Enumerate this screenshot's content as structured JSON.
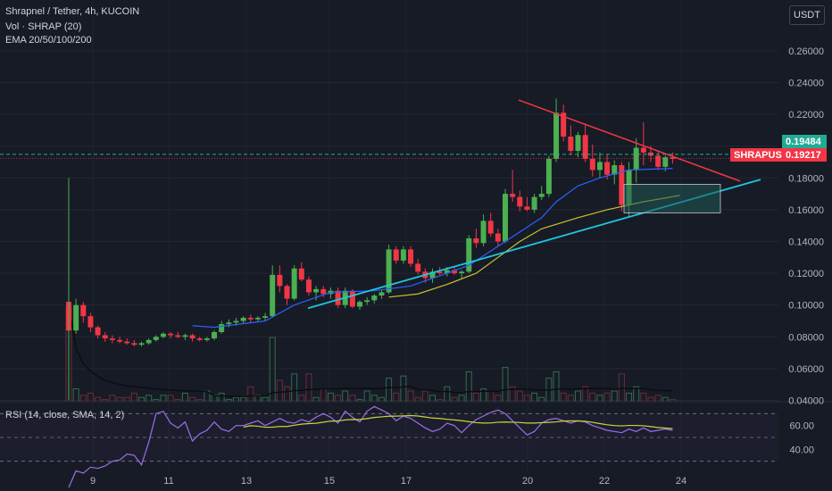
{
  "header": {
    "title": "Shrapnel / Tether, 4h, KUCOIN",
    "volume": "Vol · SHRAP (20)",
    "ema": "EMA 20/50/100/200",
    "currency": "USDT"
  },
  "colors": {
    "background": "#171b26",
    "up": "#4caf50",
    "down": "#f23645",
    "ema_fast": "#2962ff",
    "ema_slow": "#c9c12f",
    "resistance": "#f23645",
    "support": "#1ec6e0",
    "rsi_line": "#9c6ee8",
    "rsi_sma": "#c9d63a",
    "zone": "#1f5a55"
  },
  "price_axis": {
    "ticks": [
      "0.26000",
      "0.24000",
      "0.22000",
      "0.20000",
      "0.18000",
      "0.16000",
      "0.14000",
      "0.12000",
      "0.10000",
      "0.08000",
      "0.06000",
      "0.04000"
    ]
  },
  "price_labels": {
    "last_price": "0.19484",
    "symbol": "SHRAPUSDT",
    "symbol_price": "0.19217"
  },
  "time_axis": {
    "ticks": [
      "9",
      "11",
      "13",
      "15",
      "17",
      "20",
      "22",
      "24"
    ]
  },
  "rsi": {
    "label": "RSI (14, close, SMA, 14, 2)",
    "ticks": [
      "60.00",
      "40.00"
    ]
  },
  "chart_data": {
    "type": "candlestick",
    "symbol": "SHRAPUSDT",
    "exchange": "KUCOIN",
    "interval": "4h",
    "ylim": [
      0.04,
      0.27
    ],
    "candles": [
      [
        0.102,
        0.103,
        0.072,
        0.084
      ],
      [
        0.084,
        0.104,
        0.082,
        0.1
      ],
      [
        0.1,
        0.102,
        0.089,
        0.093
      ],
      [
        0.093,
        0.095,
        0.083,
        0.086
      ],
      [
        0.086,
        0.087,
        0.079,
        0.081
      ],
      [
        0.081,
        0.083,
        0.077,
        0.079
      ],
      [
        0.079,
        0.081,
        0.076,
        0.078
      ],
      [
        0.078,
        0.08,
        0.076,
        0.077
      ],
      [
        0.077,
        0.079,
        0.075,
        0.076
      ],
      [
        0.076,
        0.078,
        0.074,
        0.075
      ],
      [
        0.075,
        0.077,
        0.074,
        0.076
      ],
      [
        0.076,
        0.079,
        0.075,
        0.078
      ],
      [
        0.078,
        0.081,
        0.077,
        0.08
      ],
      [
        0.08,
        0.083,
        0.079,
        0.082
      ],
      [
        0.082,
        0.083,
        0.079,
        0.081
      ],
      [
        0.081,
        0.083,
        0.079,
        0.08
      ],
      [
        0.08,
        0.082,
        0.078,
        0.081
      ],
      [
        0.081,
        0.082,
        0.077,
        0.079
      ],
      [
        0.079,
        0.08,
        0.077,
        0.078
      ],
      [
        0.078,
        0.08,
        0.077,
        0.079
      ],
      [
        0.079,
        0.084,
        0.078,
        0.083
      ],
      [
        0.083,
        0.09,
        0.082,
        0.088
      ],
      [
        0.088,
        0.091,
        0.086,
        0.089
      ],
      [
        0.089,
        0.092,
        0.087,
        0.09
      ],
      [
        0.09,
        0.093,
        0.088,
        0.092
      ],
      [
        0.092,
        0.094,
        0.089,
        0.091
      ],
      [
        0.091,
        0.093,
        0.089,
        0.092
      ],
      [
        0.092,
        0.095,
        0.09,
        0.093
      ],
      [
        0.093,
        0.125,
        0.092,
        0.119
      ],
      [
        0.119,
        0.125,
        0.108,
        0.112
      ],
      [
        0.112,
        0.113,
        0.1,
        0.104
      ],
      [
        0.104,
        0.125,
        0.103,
        0.123
      ],
      [
        0.123,
        0.127,
        0.115,
        0.116
      ],
      [
        0.116,
        0.118,
        0.106,
        0.108
      ],
      [
        0.108,
        0.112,
        0.103,
        0.11
      ],
      [
        0.11,
        0.112,
        0.105,
        0.107
      ],
      [
        0.107,
        0.111,
        0.104,
        0.109
      ],
      [
        0.109,
        0.111,
        0.098,
        0.1
      ],
      [
        0.1,
        0.111,
        0.098,
        0.109
      ],
      [
        0.109,
        0.11,
        0.098,
        0.099
      ],
      [
        0.099,
        0.103,
        0.097,
        0.102
      ],
      [
        0.102,
        0.105,
        0.1,
        0.103
      ],
      [
        0.103,
        0.107,
        0.101,
        0.106
      ],
      [
        0.106,
        0.11,
        0.104,
        0.108
      ],
      [
        0.108,
        0.138,
        0.107,
        0.135
      ],
      [
        0.135,
        0.137,
        0.126,
        0.128
      ],
      [
        0.128,
        0.137,
        0.126,
        0.135
      ],
      [
        0.135,
        0.137,
        0.124,
        0.126
      ],
      [
        0.126,
        0.129,
        0.119,
        0.121
      ],
      [
        0.121,
        0.123,
        0.114,
        0.117
      ],
      [
        0.117,
        0.123,
        0.114,
        0.121
      ],
      [
        0.121,
        0.124,
        0.119,
        0.12
      ],
      [
        0.12,
        0.124,
        0.118,
        0.122
      ],
      [
        0.122,
        0.124,
        0.119,
        0.12
      ],
      [
        0.12,
        0.122,
        0.117,
        0.121
      ],
      [
        0.121,
        0.144,
        0.12,
        0.142
      ],
      [
        0.142,
        0.148,
        0.136,
        0.139
      ],
      [
        0.139,
        0.157,
        0.137,
        0.153
      ],
      [
        0.153,
        0.158,
        0.143,
        0.145
      ],
      [
        0.145,
        0.148,
        0.137,
        0.14
      ],
      [
        0.14,
        0.173,
        0.139,
        0.17
      ],
      [
        0.17,
        0.185,
        0.165,
        0.168
      ],
      [
        0.168,
        0.172,
        0.159,
        0.162
      ],
      [
        0.162,
        0.168,
        0.159,
        0.16
      ],
      [
        0.16,
        0.17,
        0.158,
        0.168
      ],
      [
        0.168,
        0.175,
        0.166,
        0.17
      ],
      [
        0.17,
        0.194,
        0.168,
        0.192
      ],
      [
        0.192,
        0.23,
        0.19,
        0.221
      ],
      [
        0.221,
        0.226,
        0.203,
        0.206
      ],
      [
        0.206,
        0.213,
        0.195,
        0.197
      ],
      [
        0.197,
        0.209,
        0.193,
        0.207
      ],
      [
        0.207,
        0.214,
        0.19,
        0.192
      ],
      [
        0.192,
        0.201,
        0.181,
        0.185
      ],
      [
        0.185,
        0.196,
        0.18,
        0.19
      ],
      [
        0.19,
        0.195,
        0.179,
        0.182
      ],
      [
        0.182,
        0.191,
        0.176,
        0.188
      ],
      [
        0.188,
        0.19,
        0.159,
        0.163
      ],
      [
        0.163,
        0.19,
        0.155,
        0.185
      ],
      [
        0.185,
        0.205,
        0.177,
        0.199
      ],
      [
        0.199,
        0.215,
        0.188,
        0.196
      ],
      [
        0.196,
        0.2,
        0.19,
        0.194
      ],
      [
        0.194,
        0.197,
        0.185,
        0.187
      ],
      [
        0.187,
        0.194,
        0.184,
        0.193
      ],
      [
        0.193,
        0.196,
        0.189,
        0.192
      ]
    ],
    "volume": [
      44,
      6,
      3,
      4,
      2,
      1,
      3,
      2,
      2,
      4,
      2,
      3,
      1,
      3,
      3,
      1,
      4,
      2,
      1,
      5,
      3,
      4,
      1,
      2,
      2,
      7,
      3,
      2,
      30,
      10,
      7,
      13,
      3,
      13,
      2,
      6,
      4,
      3,
      5,
      3,
      1,
      5,
      3,
      2,
      11,
      4,
      12,
      5,
      2,
      5,
      3,
      1,
      7,
      2,
      3,
      14,
      4,
      6,
      5,
      3,
      16,
      7,
      5,
      3,
      4,
      2,
      11,
      14,
      4,
      3,
      5,
      7,
      4,
      3,
      4,
      5,
      13,
      4,
      7,
      4,
      2,
      3,
      2,
      1
    ],
    "volume_ylim": [
      0,
      50
    ],
    "rsi_values": [
      8,
      22,
      20,
      25,
      24,
      26,
      30,
      31,
      36,
      35,
      27,
      46,
      70,
      72,
      62,
      58,
      63,
      47,
      53,
      56,
      63,
      57,
      55,
      60,
      60,
      62,
      64,
      60,
      63,
      66,
      63,
      62,
      65,
      63,
      67,
      70,
      67,
      62,
      72,
      67,
      63,
      72,
      76,
      73,
      70,
      64,
      68,
      66,
      62,
      58,
      55,
      57,
      62,
      60,
      54,
      60,
      65,
      68,
      71,
      73,
      70,
      64,
      58,
      52,
      55,
      62,
      65,
      66,
      64,
      62,
      64,
      63,
      60,
      58,
      56,
      55,
      54,
      57,
      55,
      58,
      55,
      56,
      57,
      56
    ],
    "rsi_ylim": [
      20,
      80
    ],
    "rsi_bands": [
      70,
      50,
      30
    ],
    "ema20": [
      [
        0.087,
        17
      ],
      [
        0.086,
        20
      ],
      [
        0.09,
        27
      ],
      [
        0.1,
        31
      ],
      [
        0.108,
        36
      ],
      [
        0.109,
        42
      ],
      [
        0.112,
        47
      ],
      [
        0.12,
        52
      ],
      [
        0.125,
        55
      ],
      [
        0.14,
        60
      ],
      [
        0.155,
        65
      ],
      [
        0.165,
        67
      ],
      [
        0.175,
        70
      ],
      [
        0.18,
        73
      ],
      [
        0.185,
        77
      ],
      [
        0.186,
        83
      ]
    ],
    "ema50": [
      [
        0.105,
        44
      ],
      [
        0.107,
        48
      ],
      [
        0.113,
        52
      ],
      [
        0.12,
        56
      ],
      [
        0.13,
        59
      ],
      [
        0.14,
        62
      ],
      [
        0.148,
        65
      ],
      [
        0.155,
        70
      ],
      [
        0.16,
        74
      ],
      [
        0.165,
        79
      ],
      [
        0.169,
        84
      ]
    ],
    "drawings": {
      "resistance": [
        [
          0.229,
          67
        ],
        [
          0.178,
          95
        ]
      ],
      "support": [
        [
          0.098,
          35
        ],
        [
          0.179,
          99
        ]
      ],
      "zone": {
        "from": 73,
        "to": 94,
        "low": 0.158,
        "high": 0.176
      }
    }
  }
}
